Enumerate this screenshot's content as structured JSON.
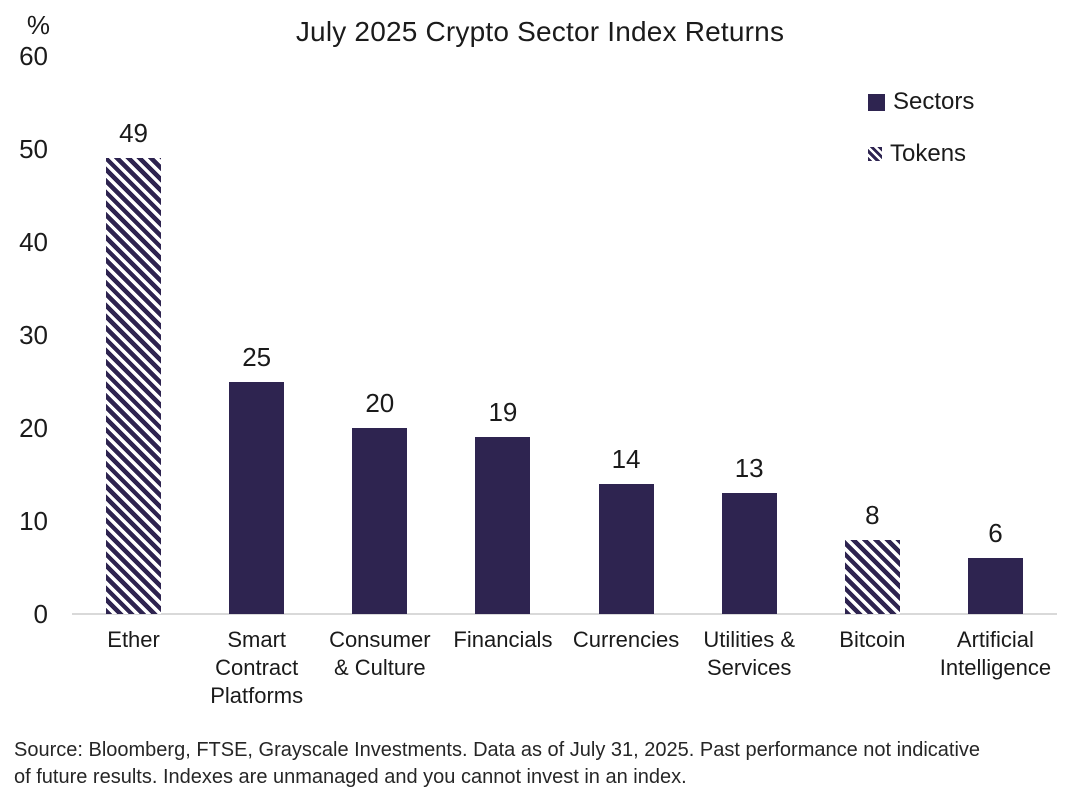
{
  "chart_data": {
    "type": "bar",
    "title": "July 2025 Crypto Sector Index Returns",
    "ylabel": "%",
    "xlabel": "",
    "ylim": [
      0,
      60
    ],
    "yticks": [
      0,
      10,
      20,
      30,
      40,
      50,
      60
    ],
    "grid": false,
    "legend_position": "top-right",
    "categories": [
      "Ether",
      "Smart\nContract\nPlatforms",
      "Consumer\n& Culture",
      "Financials",
      "Currencies",
      "Utilities &\nServices",
      "Bitcoin",
      "Artificial\nIntelligence"
    ],
    "values": [
      49,
      25,
      20,
      19,
      14,
      13,
      8,
      6
    ],
    "bar_styles": [
      "hatched",
      "solid",
      "solid",
      "solid",
      "solid",
      "solid",
      "hatched",
      "solid"
    ],
    "slugs": [
      "ether",
      "smart-contract-platforms",
      "consumer-culture",
      "financials",
      "currencies",
      "utilities-services",
      "bitcoin",
      "artificial-intelligence"
    ],
    "legend": [
      {
        "label": "Sectors",
        "style": "solid"
      },
      {
        "label": "Tokens",
        "style": "hatched"
      }
    ],
    "colors": {
      "bar": "#2e2450",
      "hatch_background": "#ffffff",
      "axis_line": "#d9d9d9",
      "text": "#1b1b1b"
    }
  },
  "footer": {
    "source_text": "Source: Bloomberg, FTSE, Grayscale Investments. Data as of July 31, 2025. Past performance not indicative\nof future results. Indexes are unmanaged and you cannot invest in an index."
  }
}
